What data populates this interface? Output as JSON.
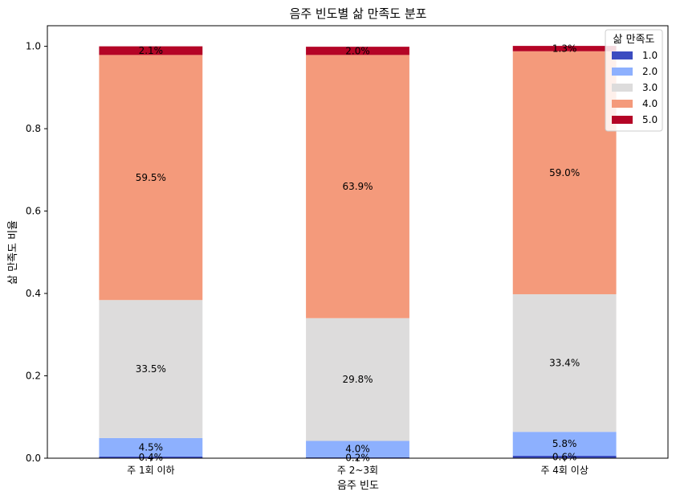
{
  "chart_data": {
    "type": "bar",
    "stacked": true,
    "title": "음주 빈도별 삶 만족도 분포",
    "xlabel": "음주 빈도",
    "ylabel": "삶 만족도 비율",
    "ylim": [
      0,
      1.05
    ],
    "yticks": [
      "0.0",
      "0.2",
      "0.4",
      "0.6",
      "0.8",
      "1.0"
    ],
    "grid": false,
    "legend_title": "삶 만족도",
    "legend_position": "top-right",
    "categories": [
      "주 1회 이하",
      "주 2~3회",
      "주 4회 이상"
    ],
    "series": [
      {
        "name": "1.0",
        "color": "#3b4cc0",
        "values": [
          0.004,
          0.002,
          0.006
        ],
        "labels": [
          "0.4%",
          "0.2%",
          "0.6%"
        ]
      },
      {
        "name": "2.0",
        "color": "#8db0fe",
        "values": [
          0.045,
          0.04,
          0.058
        ],
        "labels": [
          "4.5%",
          "4.0%",
          "5.8%"
        ]
      },
      {
        "name": "3.0",
        "color": "#dddcdc",
        "values": [
          0.335,
          0.298,
          0.334
        ],
        "labels": [
          "33.5%",
          "29.8%",
          "33.4%"
        ]
      },
      {
        "name": "4.0",
        "color": "#f49a7b",
        "values": [
          0.595,
          0.639,
          0.59
        ],
        "labels": [
          "59.5%",
          "63.9%",
          "59.0%"
        ]
      },
      {
        "name": "5.0",
        "color": "#b40426",
        "values": [
          0.021,
          0.02,
          0.013
        ],
        "labels": [
          "2.1%",
          "2.0%",
          "1.3%"
        ]
      }
    ]
  }
}
